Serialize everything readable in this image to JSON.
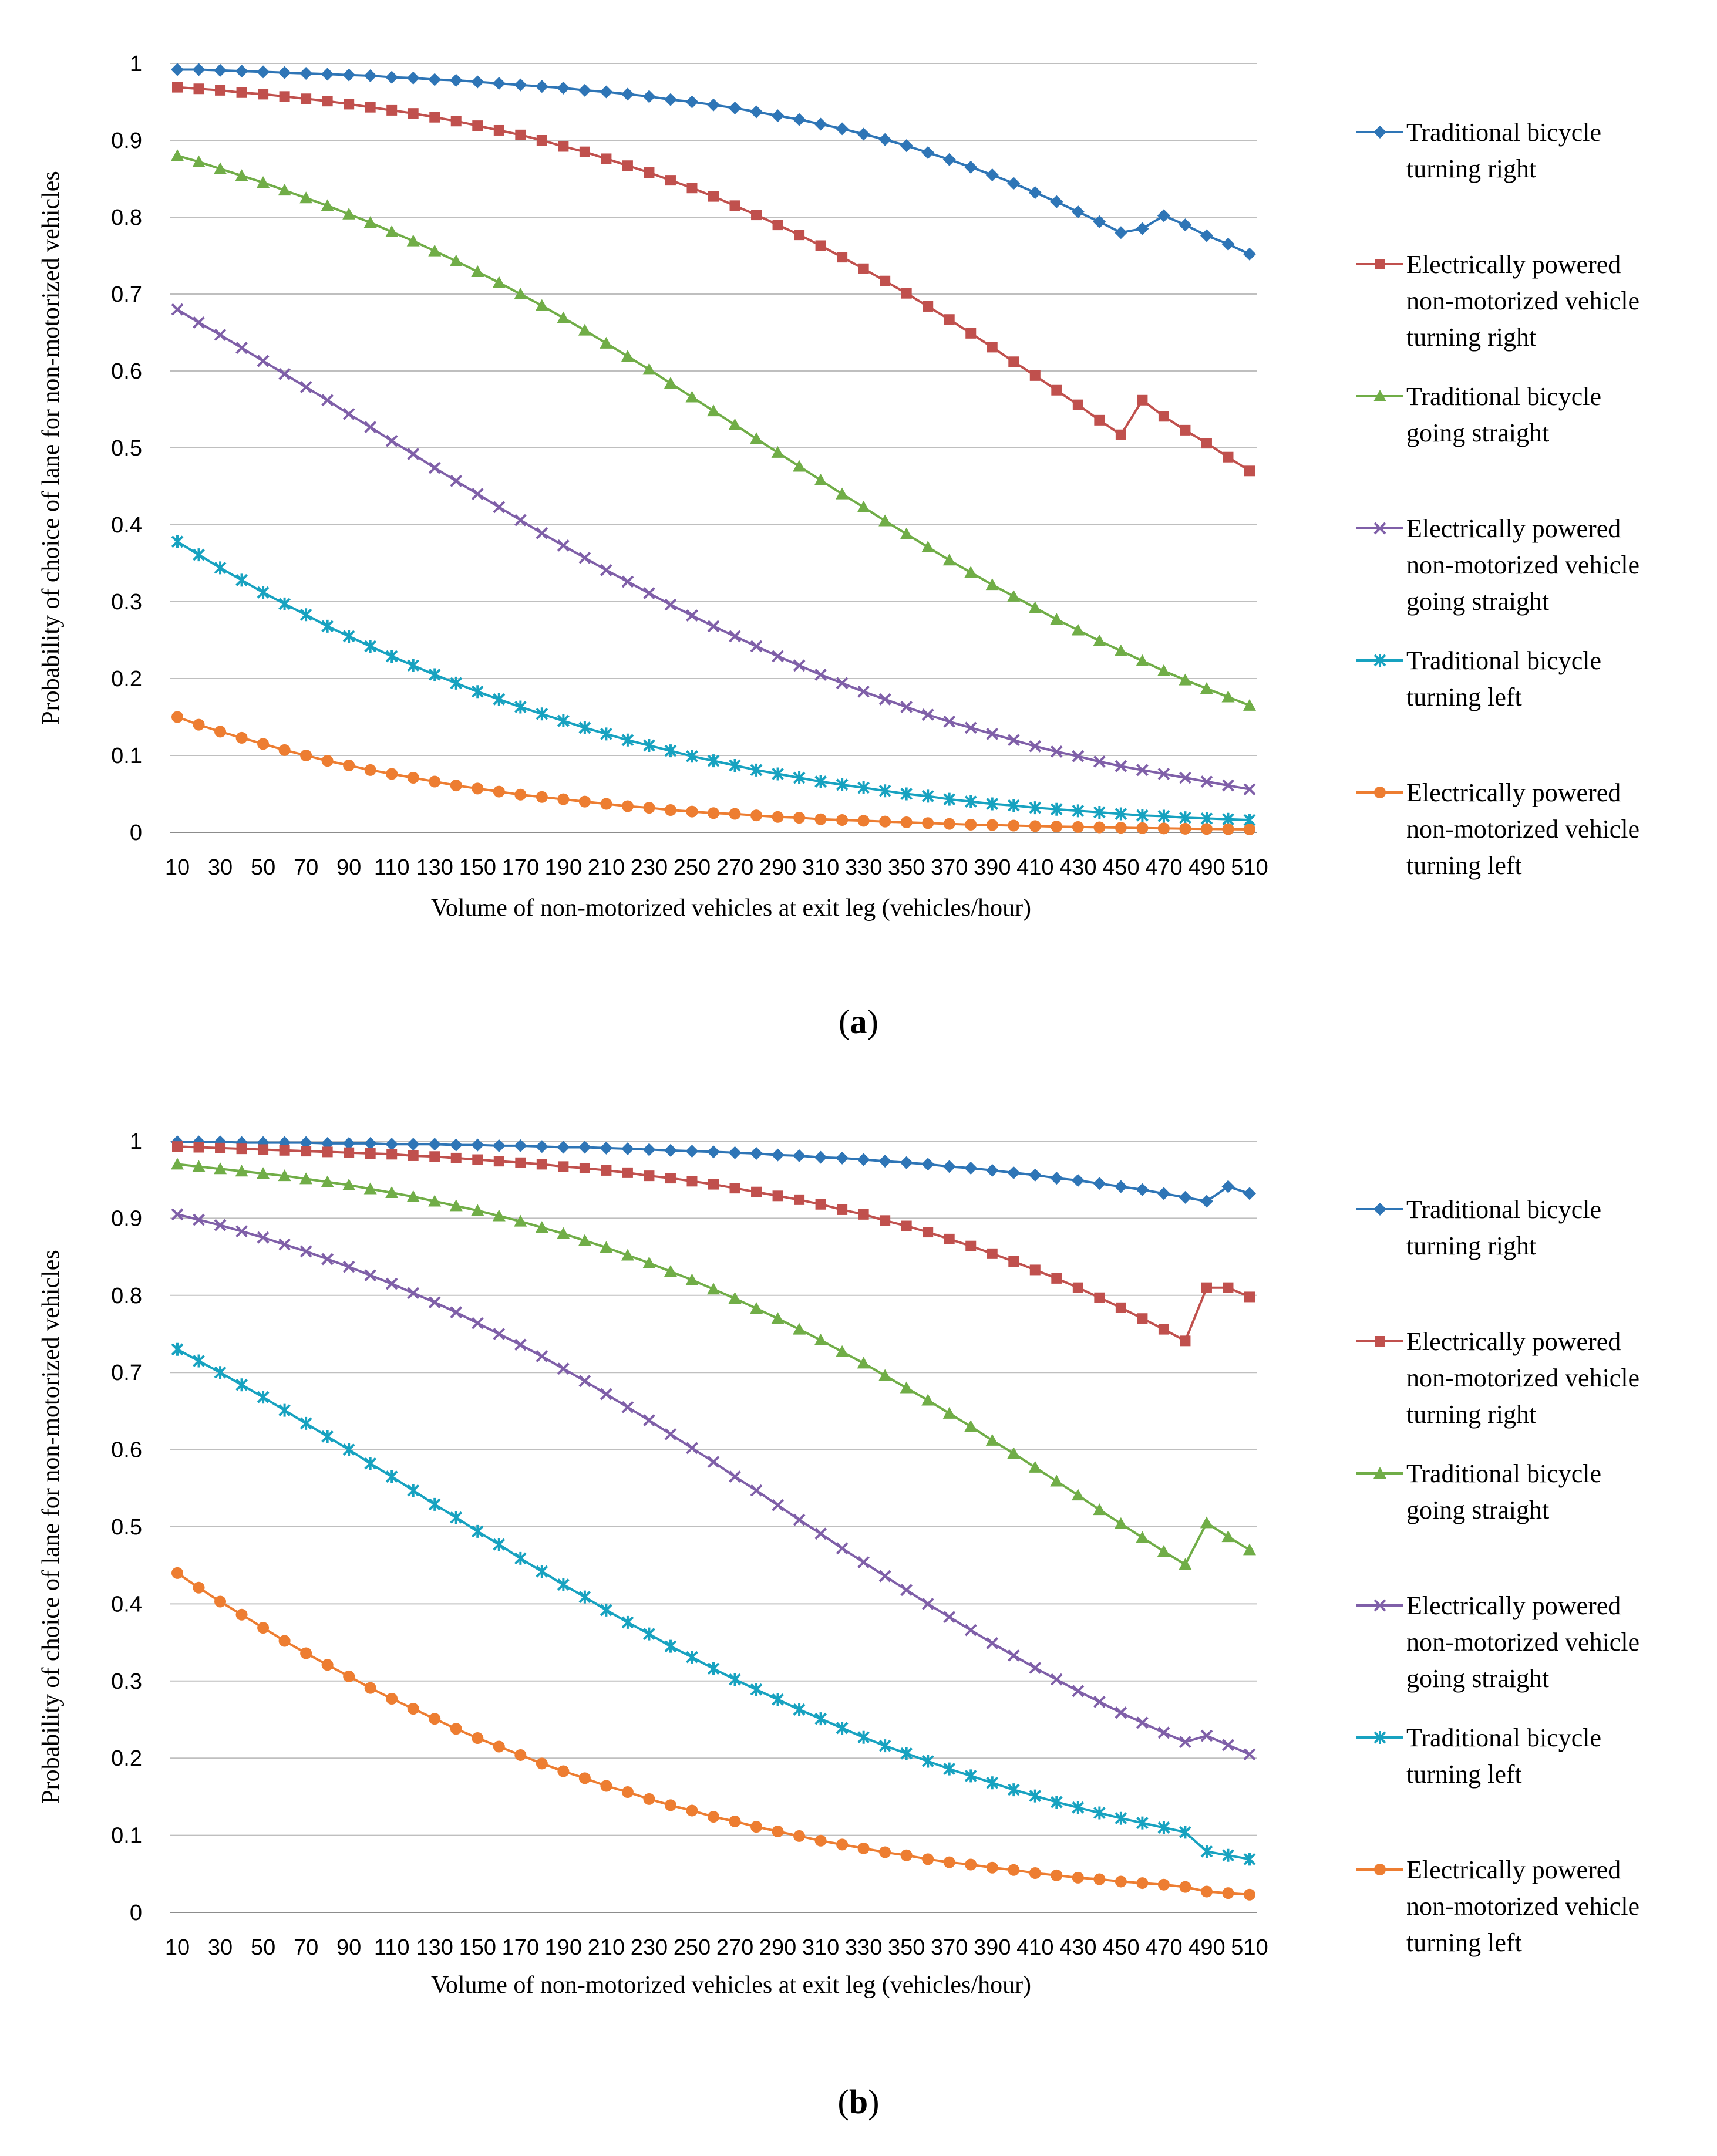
{
  "chart_data": [
    {
      "type": "line",
      "panel_label": "a",
      "title": "",
      "xlabel": "Volume of non-motorized vehicles at exit leg (vehicles/hour)",
      "ylabel": "Probability of choice of lane for non-motorized vehicles",
      "ylim": [
        0,
        1
      ],
      "yticks": [
        "0",
        "0.1",
        "0.2",
        "0.3",
        "0.4",
        "0.5",
        "0.6",
        "0.7",
        "0.8",
        "0.9",
        "1"
      ],
      "x": [
        10,
        20,
        30,
        40,
        50,
        60,
        70,
        80,
        90,
        100,
        110,
        120,
        130,
        140,
        150,
        160,
        170,
        180,
        190,
        200,
        210,
        220,
        230,
        240,
        250,
        260,
        270,
        280,
        290,
        300,
        310,
        320,
        330,
        340,
        350,
        360,
        370,
        380,
        390,
        400,
        410,
        420,
        430,
        440,
        450,
        460,
        470,
        480,
        490,
        500,
        510
      ],
      "xticks": [
        "10",
        "30",
        "50",
        "70",
        "90",
        "110",
        "130",
        "150",
        "170",
        "190",
        "210",
        "230",
        "250",
        "270",
        "290",
        "310",
        "330",
        "350",
        "370",
        "390",
        "410",
        "430",
        "450",
        "470",
        "490",
        "510"
      ],
      "legend_position": "right",
      "series": [
        {
          "name": "Traditional bicycle turning right",
          "color": "#2e75b6",
          "marker": "diamond",
          "values": [
            0.992,
            0.992,
            0.991,
            0.99,
            0.989,
            0.988,
            0.987,
            0.986,
            0.985,
            0.984,
            0.982,
            0.981,
            0.979,
            0.978,
            0.976,
            0.974,
            0.972,
            0.97,
            0.968,
            0.965,
            0.963,
            0.96,
            0.957,
            0.953,
            0.95,
            0.946,
            0.942,
            0.937,
            0.932,
            0.927,
            0.921,
            0.915,
            0.908,
            0.901,
            0.893,
            0.884,
            0.875,
            0.865,
            0.855,
            0.844,
            0.832,
            0.82,
            0.807,
            0.794,
            0.78,
            0.785,
            0.802,
            0.79,
            0.776,
            0.765,
            0.752
          ]
        },
        {
          "name": "Electrically powered non-motorized vehicle turning right",
          "color": "#c0504d",
          "marker": "square",
          "values": [
            0.969,
            0.967,
            0.965,
            0.962,
            0.96,
            0.957,
            0.954,
            0.951,
            0.947,
            0.943,
            0.939,
            0.935,
            0.93,
            0.925,
            0.919,
            0.913,
            0.907,
            0.9,
            0.892,
            0.885,
            0.876,
            0.867,
            0.858,
            0.848,
            0.838,
            0.827,
            0.815,
            0.803,
            0.79,
            0.777,
            0.763,
            0.748,
            0.733,
            0.717,
            0.701,
            0.684,
            0.667,
            0.649,
            0.631,
            0.612,
            0.594,
            0.575,
            0.556,
            0.536,
            0.517,
            0.562,
            0.541,
            0.523,
            0.506,
            0.488,
            0.47
          ]
        },
        {
          "name": "Traditional bicycle going straight",
          "color": "#70ad47",
          "marker": "triangle",
          "values": [
            0.88,
            0.872,
            0.863,
            0.854,
            0.845,
            0.835,
            0.825,
            0.815,
            0.804,
            0.793,
            0.781,
            0.769,
            0.756,
            0.743,
            0.729,
            0.715,
            0.7,
            0.685,
            0.669,
            0.653,
            0.636,
            0.619,
            0.602,
            0.584,
            0.566,
            0.548,
            0.53,
            0.512,
            0.494,
            0.476,
            0.458,
            0.44,
            0.423,
            0.405,
            0.388,
            0.371,
            0.354,
            0.338,
            0.322,
            0.307,
            0.292,
            0.277,
            0.263,
            0.249,
            0.236,
            0.223,
            0.21,
            0.198,
            0.187,
            0.176,
            0.165
          ]
        },
        {
          "name": "Electrically powered non-motorized vehicle going straight",
          "color": "#7f5fa8",
          "marker": "x",
          "values": [
            0.68,
            0.663,
            0.647,
            0.63,
            0.613,
            0.596,
            0.579,
            0.562,
            0.544,
            0.527,
            0.509,
            0.492,
            0.474,
            0.457,
            0.44,
            0.423,
            0.406,
            0.389,
            0.373,
            0.357,
            0.341,
            0.326,
            0.311,
            0.296,
            0.282,
            0.268,
            0.255,
            0.242,
            0.229,
            0.217,
            0.205,
            0.194,
            0.183,
            0.173,
            0.163,
            0.153,
            0.144,
            0.136,
            0.128,
            0.12,
            0.112,
            0.105,
            0.099,
            0.092,
            0.086,
            0.081,
            0.076,
            0.071,
            0.066,
            0.061,
            0.056
          ]
        },
        {
          "name": "Traditional bicycle turning left",
          "color": "#17a2c0",
          "marker": "star",
          "values": [
            0.378,
            0.361,
            0.344,
            0.328,
            0.312,
            0.297,
            0.283,
            0.268,
            0.255,
            0.242,
            0.229,
            0.217,
            0.205,
            0.194,
            0.183,
            0.173,
            0.163,
            0.154,
            0.145,
            0.136,
            0.128,
            0.12,
            0.113,
            0.106,
            0.099,
            0.093,
            0.087,
            0.081,
            0.076,
            0.071,
            0.066,
            0.062,
            0.058,
            0.054,
            0.05,
            0.047,
            0.043,
            0.04,
            0.037,
            0.035,
            0.032,
            0.03,
            0.028,
            0.026,
            0.024,
            0.022,
            0.021,
            0.019,
            0.018,
            0.017,
            0.016
          ]
        },
        {
          "name": "Electrically powered non-motorized vehicle turning left",
          "color": "#ed7d31",
          "marker": "circle",
          "values": [
            0.15,
            0.14,
            0.131,
            0.123,
            0.115,
            0.107,
            0.1,
            0.093,
            0.087,
            0.081,
            0.076,
            0.071,
            0.066,
            0.061,
            0.057,
            0.053,
            0.049,
            0.046,
            0.043,
            0.04,
            0.037,
            0.034,
            0.032,
            0.029,
            0.027,
            0.025,
            0.024,
            0.022,
            0.02,
            0.019,
            0.017,
            0.016,
            0.015,
            0.014,
            0.013,
            0.012,
            0.011,
            0.01,
            0.0095,
            0.0088,
            0.0081,
            0.0075,
            0.007,
            0.0065,
            0.006,
            0.0055,
            0.0051,
            0.0047,
            0.0044,
            0.0041,
            0.0038
          ]
        }
      ]
    },
    {
      "type": "line",
      "panel_label": "b",
      "title": "",
      "xlabel": "Volume of non-motorized vehicles at exit leg (vehicles/hour)",
      "ylabel": "Probability of choice of lane for non-motorized vehicles",
      "ylim": [
        0,
        1
      ],
      "yticks": [
        "0",
        "0.1",
        "0.2",
        "0.3",
        "0.4",
        "0.5",
        "0.6",
        "0.7",
        "0.8",
        "0.9",
        "1"
      ],
      "x": [
        10,
        20,
        30,
        40,
        50,
        60,
        70,
        80,
        90,
        100,
        110,
        120,
        130,
        140,
        150,
        160,
        170,
        180,
        190,
        200,
        210,
        220,
        230,
        240,
        250,
        260,
        270,
        280,
        290,
        300,
        310,
        320,
        330,
        340,
        350,
        360,
        370,
        380,
        390,
        400,
        410,
        420,
        430,
        440,
        450,
        460,
        470,
        480,
        490,
        500,
        510
      ],
      "xticks": [
        "10",
        "30",
        "50",
        "70",
        "90",
        "110",
        "130",
        "150",
        "170",
        "190",
        "210",
        "230",
        "250",
        "270",
        "290",
        "310",
        "330",
        "350",
        "370",
        "390",
        "410",
        "430",
        "450",
        "470",
        "490",
        "510"
      ],
      "legend_position": "right",
      "series": [
        {
          "name": "Traditional bicycle turning right",
          "color": "#2e75b6",
          "marker": "diamond",
          "values": [
            0.999,
            0.999,
            0.999,
            0.998,
            0.998,
            0.998,
            0.998,
            0.997,
            0.997,
            0.997,
            0.996,
            0.996,
            0.996,
            0.995,
            0.995,
            0.994,
            0.994,
            0.993,
            0.992,
            0.992,
            0.991,
            0.99,
            0.989,
            0.988,
            0.987,
            0.986,
            0.985,
            0.984,
            0.982,
            0.981,
            0.979,
            0.978,
            0.976,
            0.974,
            0.972,
            0.97,
            0.967,
            0.965,
            0.962,
            0.959,
            0.956,
            0.952,
            0.949,
            0.945,
            0.941,
            0.937,
            0.932,
            0.927,
            0.922,
            0.941,
            0.932
          ]
        },
        {
          "name": "Electrically powered non-motorized vehicle turning right",
          "color": "#c0504d",
          "marker": "square",
          "values": [
            0.993,
            0.992,
            0.991,
            0.99,
            0.989,
            0.988,
            0.987,
            0.986,
            0.985,
            0.984,
            0.983,
            0.981,
            0.98,
            0.978,
            0.976,
            0.974,
            0.972,
            0.97,
            0.967,
            0.965,
            0.962,
            0.959,
            0.955,
            0.952,
            0.948,
            0.944,
            0.939,
            0.934,
            0.929,
            0.924,
            0.918,
            0.911,
            0.905,
            0.897,
            0.89,
            0.882,
            0.873,
            0.864,
            0.854,
            0.844,
            0.833,
            0.822,
            0.81,
            0.797,
            0.784,
            0.77,
            0.756,
            0.741,
            0.81,
            0.81,
            0.798
          ]
        },
        {
          "name": "Traditional bicycle going straight",
          "color": "#70ad47",
          "marker": "triangle",
          "values": [
            0.97,
            0.967,
            0.964,
            0.961,
            0.958,
            0.955,
            0.951,
            0.947,
            0.943,
            0.938,
            0.933,
            0.928,
            0.922,
            0.916,
            0.91,
            0.903,
            0.896,
            0.888,
            0.88,
            0.871,
            0.862,
            0.852,
            0.842,
            0.831,
            0.82,
            0.808,
            0.796,
            0.783,
            0.77,
            0.756,
            0.742,
            0.727,
            0.712,
            0.696,
            0.68,
            0.664,
            0.647,
            0.63,
            0.612,
            0.595,
            0.577,
            0.559,
            0.541,
            0.522,
            0.504,
            0.486,
            0.468,
            0.451,
            0.505,
            0.487,
            0.47
          ]
        },
        {
          "name": "Electrically powered non-motorized vehicle going straight",
          "color": "#7f5fa8",
          "marker": "x",
          "values": [
            0.905,
            0.898,
            0.891,
            0.883,
            0.875,
            0.866,
            0.857,
            0.847,
            0.837,
            0.826,
            0.815,
            0.803,
            0.791,
            0.778,
            0.764,
            0.75,
            0.736,
            0.721,
            0.705,
            0.689,
            0.672,
            0.655,
            0.638,
            0.62,
            0.602,
            0.584,
            0.565,
            0.547,
            0.528,
            0.509,
            0.491,
            0.472,
            0.454,
            0.436,
            0.418,
            0.4,
            0.383,
            0.366,
            0.349,
            0.333,
            0.317,
            0.302,
            0.287,
            0.273,
            0.259,
            0.246,
            0.233,
            0.221,
            0.229,
            0.217,
            0.205
          ]
        },
        {
          "name": "Traditional bicycle turning left",
          "color": "#17a2c0",
          "marker": "star",
          "values": [
            0.73,
            0.715,
            0.7,
            0.684,
            0.668,
            0.651,
            0.634,
            0.617,
            0.6,
            0.582,
            0.565,
            0.547,
            0.529,
            0.512,
            0.494,
            0.477,
            0.459,
            0.442,
            0.425,
            0.409,
            0.392,
            0.376,
            0.361,
            0.345,
            0.331,
            0.316,
            0.302,
            0.289,
            0.276,
            0.263,
            0.251,
            0.239,
            0.227,
            0.216,
            0.206,
            0.196,
            0.186,
            0.177,
            0.168,
            0.159,
            0.151,
            0.143,
            0.136,
            0.129,
            0.122,
            0.116,
            0.11,
            0.104,
            0.079,
            0.074,
            0.069
          ]
        },
        {
          "name": "Electrically powered non-motorized vehicle turning left",
          "color": "#ed7d31",
          "marker": "circle",
          "values": [
            0.44,
            0.421,
            0.403,
            0.386,
            0.369,
            0.352,
            0.336,
            0.321,
            0.306,
            0.291,
            0.277,
            0.264,
            0.251,
            0.238,
            0.226,
            0.215,
            0.204,
            0.193,
            0.183,
            0.174,
            0.164,
            0.156,
            0.147,
            0.139,
            0.132,
            0.124,
            0.118,
            0.111,
            0.105,
            0.099,
            0.093,
            0.088,
            0.083,
            0.078,
            0.074,
            0.069,
            0.065,
            0.062,
            0.058,
            0.055,
            0.051,
            0.048,
            0.045,
            0.043,
            0.04,
            0.038,
            0.036,
            0.033,
            0.027,
            0.025,
            0.023
          ]
        }
      ]
    }
  ]
}
